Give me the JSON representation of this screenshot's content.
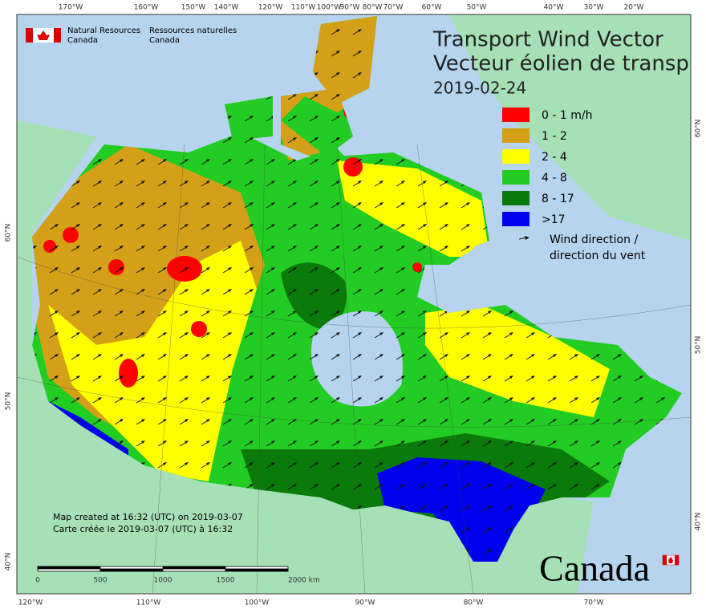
{
  "header": {
    "agency_en": [
      "Natural Resources",
      "Canada"
    ],
    "agency_fr": [
      "Ressources naturelles",
      "Canada"
    ]
  },
  "title": [
    "Transport Wind Vector",
    "Vecteur éolien de transp"
  ],
  "date": "2019-02-24",
  "legend": [
    {
      "label": "0 - 1 m/h",
      "color": "#ff0000"
    },
    {
      "label": "1 - 2",
      "color": "#d4a017"
    },
    {
      "label": "2 - 4",
      "color": "#ffff00"
    },
    {
      "label": "4 - 8",
      "color": "#22cc22"
    },
    {
      "label": "8 - 17",
      "color": "#0a7a0a"
    },
    {
      "label": ">17",
      "color": "#0000ee"
    }
  ],
  "wind_label": [
    "Wind direction /",
    "direction du vent"
  ],
  "top_lon_labels": [
    "170°W",
    "160°W",
    "150°W",
    "140°W",
    "120°W",
    "110°W",
    "100°W",
    "90°W",
    "80°W",
    "70°W",
    "60°W",
    "50°W",
    "40°W",
    "30°W",
    "20°W"
  ],
  "bottom_lon_labels": [
    "120°W",
    "110°W",
    "100°W",
    "90°W",
    "80°W",
    "70°W"
  ],
  "left_lat_labels": [
    "60°N",
    "50°N",
    "40°N"
  ],
  "right_lat_labels": [
    "60°N",
    "50°N",
    "40°N"
  ],
  "credits": [
    "Map created at 16:32 (UTC) on 2019-03-07",
    "Carte créée le 2019-03-07 (UTC) à 16:32"
  ],
  "scale_labels": [
    "0",
    "500",
    "1000",
    "1500",
    "2000 km"
  ],
  "wordmark": "Canada"
}
